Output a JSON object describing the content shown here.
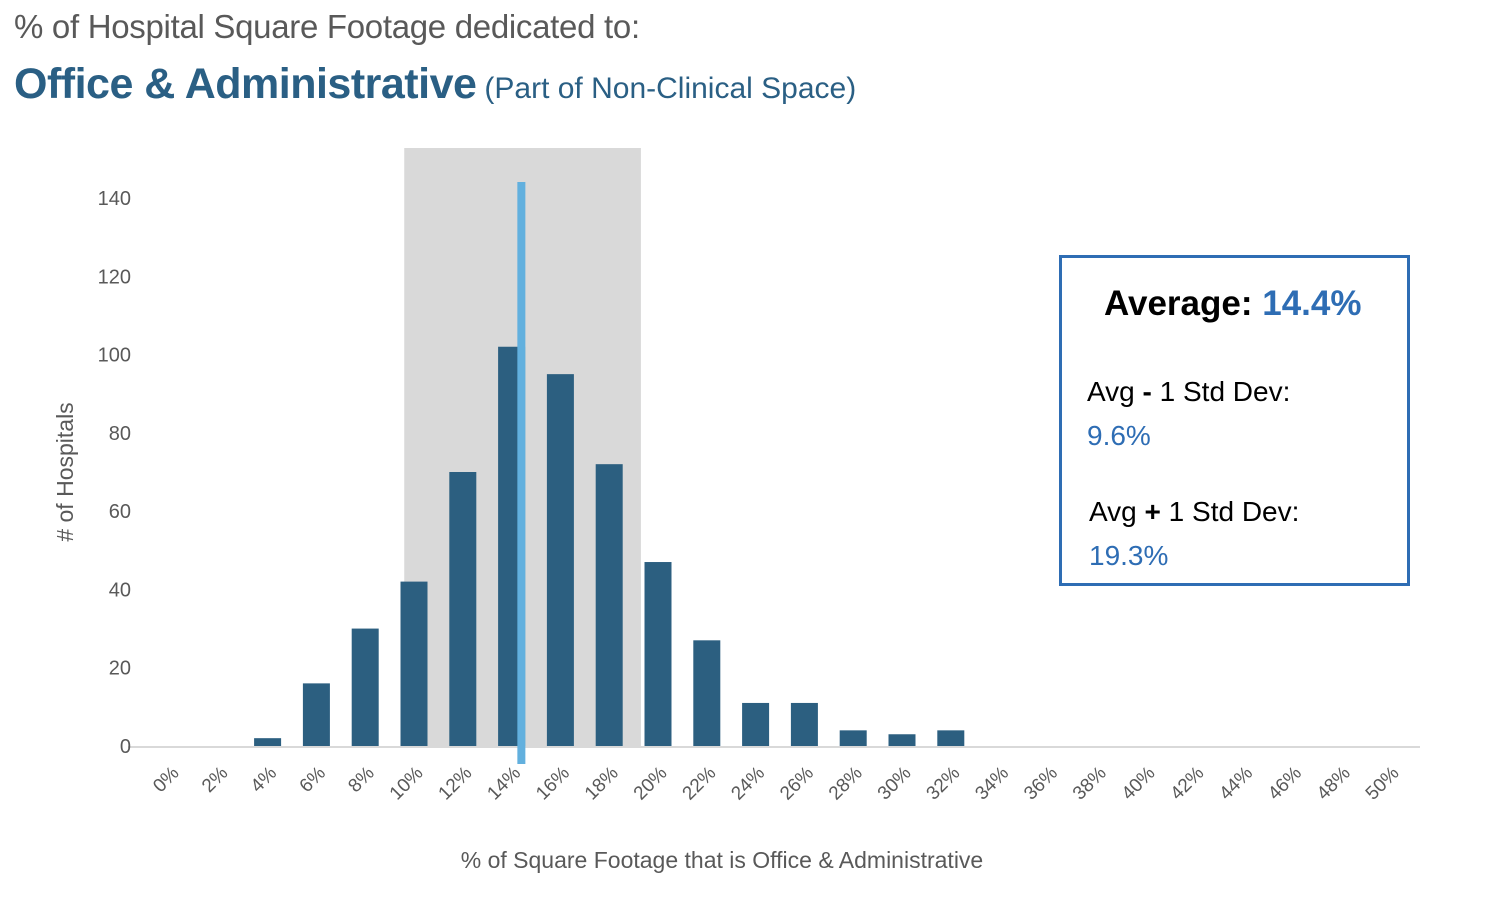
{
  "header": {
    "supertitle": "% of Hospital Square Footage dedicated to:",
    "title": "Office & Administrative",
    "subtitle": "(Part of Non-Clinical Space)"
  },
  "stats": {
    "average_label": "Average:",
    "average_value": "14.4%",
    "minus_label_pre": "Avg ",
    "minus_sign": "-",
    "minus_label_post": " 1 Std Dev:",
    "minus_value": "9.6%",
    "plus_label_pre": "Avg ",
    "plus_sign": "+",
    "plus_label_post": " 1 Std Dev:",
    "plus_value": "19.3%"
  },
  "colors": {
    "bar": "#2c5f80",
    "average_line": "#62b0de",
    "std_band": "#d9d9d9",
    "axis_line": "#d9d9d9",
    "title": "#2a5f84",
    "stat_value": "#2e6db4"
  },
  "chart_data": {
    "type": "bar",
    "title": "% of Hospital Square Footage dedicated to: Office & Administrative (Part of Non-Clinical Space)",
    "xlabel": "% of Square Footage that is Office & Administrative",
    "ylabel": "# of Hospitals",
    "ylim": [
      0,
      140
    ],
    "yticks": [
      0,
      20,
      40,
      60,
      80,
      100,
      120,
      140
    ],
    "categories": [
      "0%",
      "2%",
      "4%",
      "6%",
      "8%",
      "10%",
      "12%",
      "14%",
      "16%",
      "18%",
      "20%",
      "22%",
      "24%",
      "26%",
      "28%",
      "30%",
      "32%",
      "34%",
      "36%",
      "38%",
      "40%",
      "42%",
      "44%",
      "46%",
      "48%",
      "50%"
    ],
    "values": [
      0,
      0,
      2,
      16,
      30,
      42,
      70,
      102,
      95,
      72,
      47,
      27,
      11,
      11,
      4,
      3,
      4,
      0,
      0,
      0,
      0,
      0,
      0,
      0,
      0,
      0
    ],
    "grid": false,
    "legend": "none",
    "annotations": {
      "average_pct": 14.4,
      "std_band_pct": [
        9.6,
        19.3
      ]
    }
  }
}
